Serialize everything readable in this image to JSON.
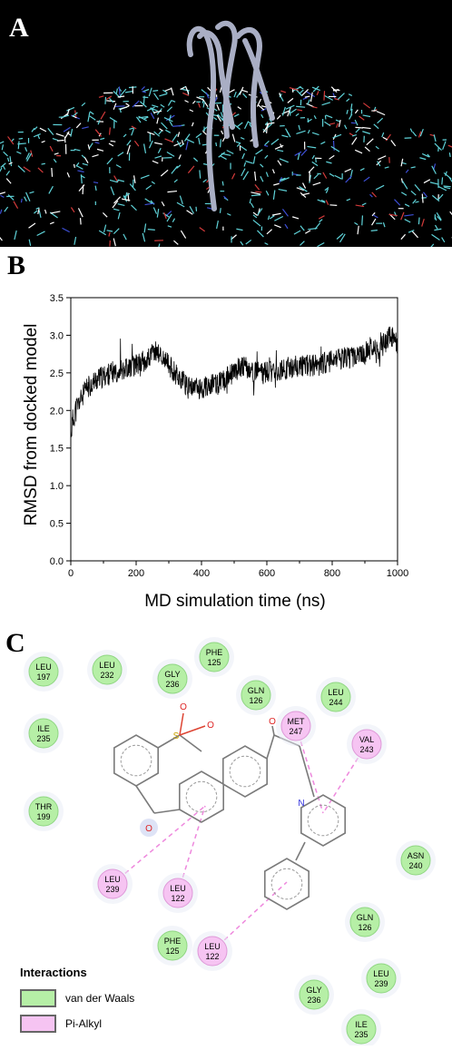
{
  "panel_a": {
    "letter": "A"
  },
  "panel_b": {
    "letter": "B"
  },
  "panel_c": {
    "letter": "C"
  },
  "colors": {
    "vdw_fill": "#b6efa6",
    "vdw_stroke": "#8fd682",
    "pialkyl_fill": "#f6c4f2",
    "pialkyl_stroke": "#de98d8",
    "pialkyl_line": "#ee88dd",
    "membrane": "#5fd3d9",
    "protein": "#a9aec4"
  },
  "chart_data": {
    "type": "line",
    "title": "",
    "xlabel": "MD simulation time (ns)",
    "ylabel": "RMSD from docked model",
    "xlim": [
      0,
      1000
    ],
    "ylim": [
      0,
      3.5
    ],
    "xticks": [
      0,
      200,
      400,
      600,
      800,
      1000
    ],
    "yticks": [
      "0.0",
      "0.5",
      "1.0",
      "1.5",
      "2.0",
      "2.5",
      "3.0",
      "3.5"
    ],
    "grid": false,
    "series": [
      {
        "x": [
          0,
          10,
          25,
          50,
          75,
          100,
          150,
          200,
          240,
          260,
          280,
          300,
          320,
          340,
          360,
          400,
          450,
          500,
          520,
          540,
          560,
          600,
          650,
          700,
          750,
          800,
          850,
          900,
          920,
          940,
          960,
          980,
          1000
        ],
        "values": [
          1.7,
          1.95,
          2.1,
          2.3,
          2.4,
          2.45,
          2.55,
          2.6,
          2.7,
          2.8,
          2.7,
          2.6,
          2.5,
          2.4,
          2.3,
          2.3,
          2.35,
          2.5,
          2.6,
          2.55,
          2.5,
          2.5,
          2.55,
          2.6,
          2.6,
          2.65,
          2.7,
          2.75,
          2.85,
          2.75,
          2.9,
          3.0,
          2.9
        ]
      }
    ]
  },
  "diagram": {
    "residues_vdw": [
      {
        "name": "LEU",
        "num": "197"
      },
      {
        "name": "LEU",
        "num": "232"
      },
      {
        "name": "GLY",
        "num": "236"
      },
      {
        "name": "PHE",
        "num": "125"
      },
      {
        "name": "GLN",
        "num": "126"
      },
      {
        "name": "LEU",
        "num": "244"
      },
      {
        "name": "ILE",
        "num": "235"
      },
      {
        "name": "THR",
        "num": "199"
      },
      {
        "name": "ASN",
        "num": "240"
      },
      {
        "name": "GLN",
        "num": "126"
      },
      {
        "name": "PHE",
        "num": "125"
      },
      {
        "name": "LEU",
        "num": "239"
      },
      {
        "name": "GLY",
        "num": "236"
      },
      {
        "name": "ILE",
        "num": "235"
      }
    ],
    "residues_pialkyl": [
      {
        "name": "MET",
        "num": "247"
      },
      {
        "name": "VAL",
        "num": "243"
      },
      {
        "name": "LEU",
        "num": "239"
      },
      {
        "name": "LEU",
        "num": "122"
      },
      {
        "name": "LEU",
        "num": "122"
      }
    ],
    "atom_labels": {
      "oxygen": "O",
      "sulfur": "S",
      "nitrogen": "N"
    }
  },
  "legend": {
    "title": "Interactions",
    "items": [
      {
        "label": "van der Waals"
      },
      {
        "label": "Pi-Alkyl"
      }
    ]
  }
}
